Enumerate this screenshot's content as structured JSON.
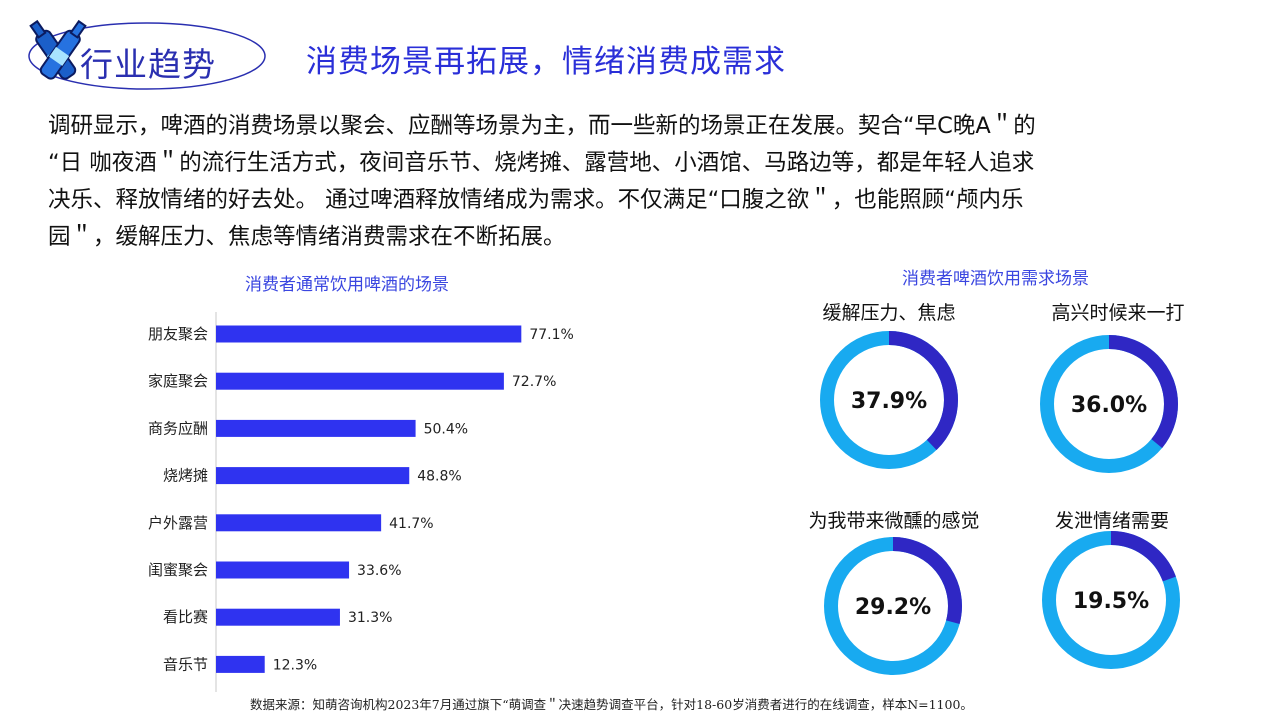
{
  "header": {
    "section_label": "行业趋势",
    "title": "消费场景再拓展，情绪消费成需求"
  },
  "intro_lines": [
    "调研显示，啤酒的消费场景以聚会、应酬等场景为主，而一些新的场景正在发展。契合“早C晚A＂的",
    "“日 咖夜酒＂的流行生活方式，夜间音乐节、烧烤摊、露营地、小酒馆、马路边等，都是年轻人追求",
    "决乐、释放情绪的好去处。 通过啤酒释放情绪成为需求。不仅满足“口腹之欲＂，也能照顾“颅内乐",
    "园＂，缓解压力、焦虑等情绪消费需求在不断拓展。"
  ],
  "source_note": "数据来源：知萌咨询机构2023年7月通过旗下“萌调查＂决速趋势调查平台，针对18-60岁消费者进行的在线调查，样本N=1100。",
  "colors": {
    "accent": "#2a2fd8",
    "bar": "#2f33f0",
    "donut_dark": "#2f27c4",
    "donut_light": "#18aaf0"
  },
  "chart_data": [
    {
      "type": "bar",
      "orientation": "horizontal",
      "title": "消费者通常饮用啤酒的场景",
      "categories": [
        "朋友聚会",
        "家庭聚会",
        "商务应酬",
        "烧烤摊",
        "户外露营",
        "闺蜜聚会",
        "看比赛",
        "音乐节"
      ],
      "values": [
        77.1,
        72.7,
        50.4,
        48.8,
        41.7,
        33.6,
        31.3,
        12.3
      ],
      "value_labels": [
        "77.1%",
        "72.7%",
        "50.4%",
        "48.8%",
        "41.7%",
        "33.6%",
        "31.3%",
        "12.3%"
      ],
      "xlim": [
        0,
        100
      ],
      "grid": false
    },
    {
      "type": "pie",
      "donut": true,
      "title": "消费者啤酒饮用需求场景",
      "items": [
        {
          "label": "缓解压力、焦虑",
          "value": 37.9,
          "display": "37.9%"
        },
        {
          "label": "高兴时候来一打",
          "value": 36.0,
          "display": "36.0%"
        },
        {
          "label": "为我带来微醺的感觉",
          "value": 29.2,
          "display": "29.2%"
        },
        {
          "label": "发泄情绪需要",
          "value": 19.5,
          "display": "19.5%"
        }
      ]
    }
  ]
}
